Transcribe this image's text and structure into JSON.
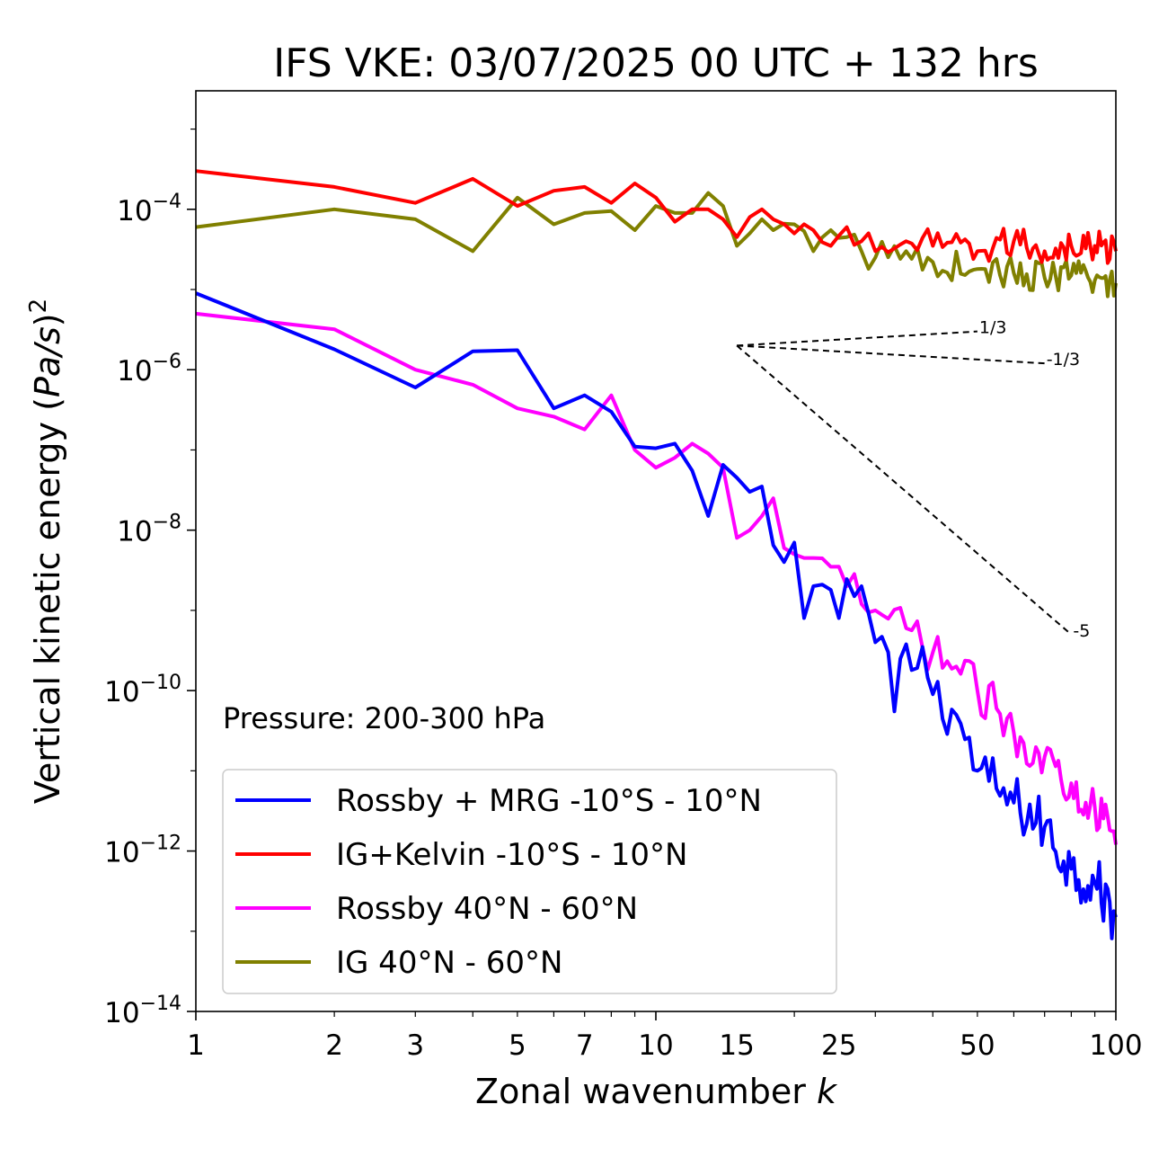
{
  "chart_data": {
    "type": "line",
    "title": "IFS VKE: 03/07/2025 00 UTC + 132 hrs",
    "xlabel_text": "Zonal wavenumber ",
    "xlabel_var": "k",
    "ylabel_text": "Vertical kinetic energy (",
    "ylabel_var": "Pa/s",
    "ylabel_close": ")",
    "ylabel_power": "2",
    "xscale": "log",
    "yscale": "log",
    "xlim": [
      1,
      100
    ],
    "ylim": [
      1e-14,
      0.003
    ],
    "x_ticks": [
      {
        "value": 1,
        "label": "1"
      },
      {
        "value": 2,
        "label": "2"
      },
      {
        "value": 3,
        "label": "3"
      },
      {
        "value": 5,
        "label": "5"
      },
      {
        "value": 7,
        "label": "7"
      },
      {
        "value": 10,
        "label": "10"
      },
      {
        "value": 15,
        "label": "15"
      },
      {
        "value": 25,
        "label": "25"
      },
      {
        "value": 50,
        "label": "50"
      },
      {
        "value": 100,
        "label": "100"
      }
    ],
    "y_ticks": [
      {
        "value": 0.0001,
        "base": "10",
        "exp": "−4"
      },
      {
        "value": 1e-06,
        "base": "10",
        "exp": "−6"
      },
      {
        "value": 1e-08,
        "base": "10",
        "exp": "−8"
      },
      {
        "value": 1e-10,
        "base": "10",
        "exp": "−10"
      },
      {
        "value": 1e-12,
        "base": "10",
        "exp": "−12"
      },
      {
        "value": 1e-14,
        "base": "10",
        "exp": "−14"
      }
    ],
    "annotation": "Pressure: 200-300 hPa",
    "legend_position": "lower-left",
    "series": [
      {
        "name": "Rossby + MRG -10°S - 10°N",
        "color": "#0000ff"
      },
      {
        "name": "IG+Kelvin -10°S - 10°N",
        "color": "#ff0000"
      },
      {
        "name": "Rossby 40°N - 60°N",
        "color": "#ff00ff"
      },
      {
        "name": "IG 40°N - 60°N",
        "color": "#808000"
      }
    ],
    "reference_slopes": [
      {
        "label": "1/3",
        "x": [
          15,
          50
        ],
        "y": [
          2e-06,
          3e-06
        ]
      },
      {
        "label": "-1/3",
        "x": [
          15,
          70
        ],
        "y": [
          2e-06,
          1.2e-06
        ]
      },
      {
        "label": "-5",
        "x": [
          15,
          80
        ],
        "y": [
          2e-06,
          5e-10
        ]
      }
    ]
  }
}
